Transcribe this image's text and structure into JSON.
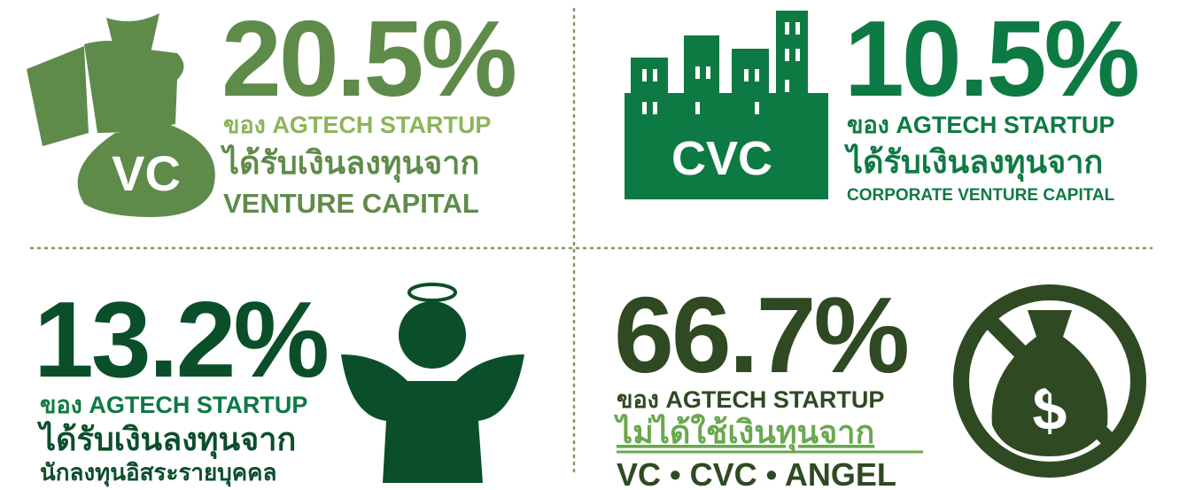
{
  "panels": [
    {
      "value": "20.5%",
      "line1": "ของ AGTECH STARTUP",
      "line2": "ได้รับเงินลงทุนจาก",
      "line3": "VENTURE CAPITAL",
      "icon_label": "VC"
    },
    {
      "value": "10.5%",
      "line1": "ของ AGTECH STARTUP",
      "line2": "ได้รับเงินลงทุนจาก",
      "line3": "CORPORATE VENTURE CAPITAL",
      "icon_label": "CVC"
    },
    {
      "value": "13.2%",
      "line1": "ของ AGTECH STARTUP",
      "line2": "ได้รับเงินลงทุนจาก",
      "line3": "นักลงทุนอิสระรายบุคคล"
    },
    {
      "value": "66.7%",
      "line1": "ของ AGTECH STARTUP",
      "line2": "ไม่ได้ใช้เงินทุนจาก",
      "line3": "VC • CVC • ANGEL"
    }
  ]
}
